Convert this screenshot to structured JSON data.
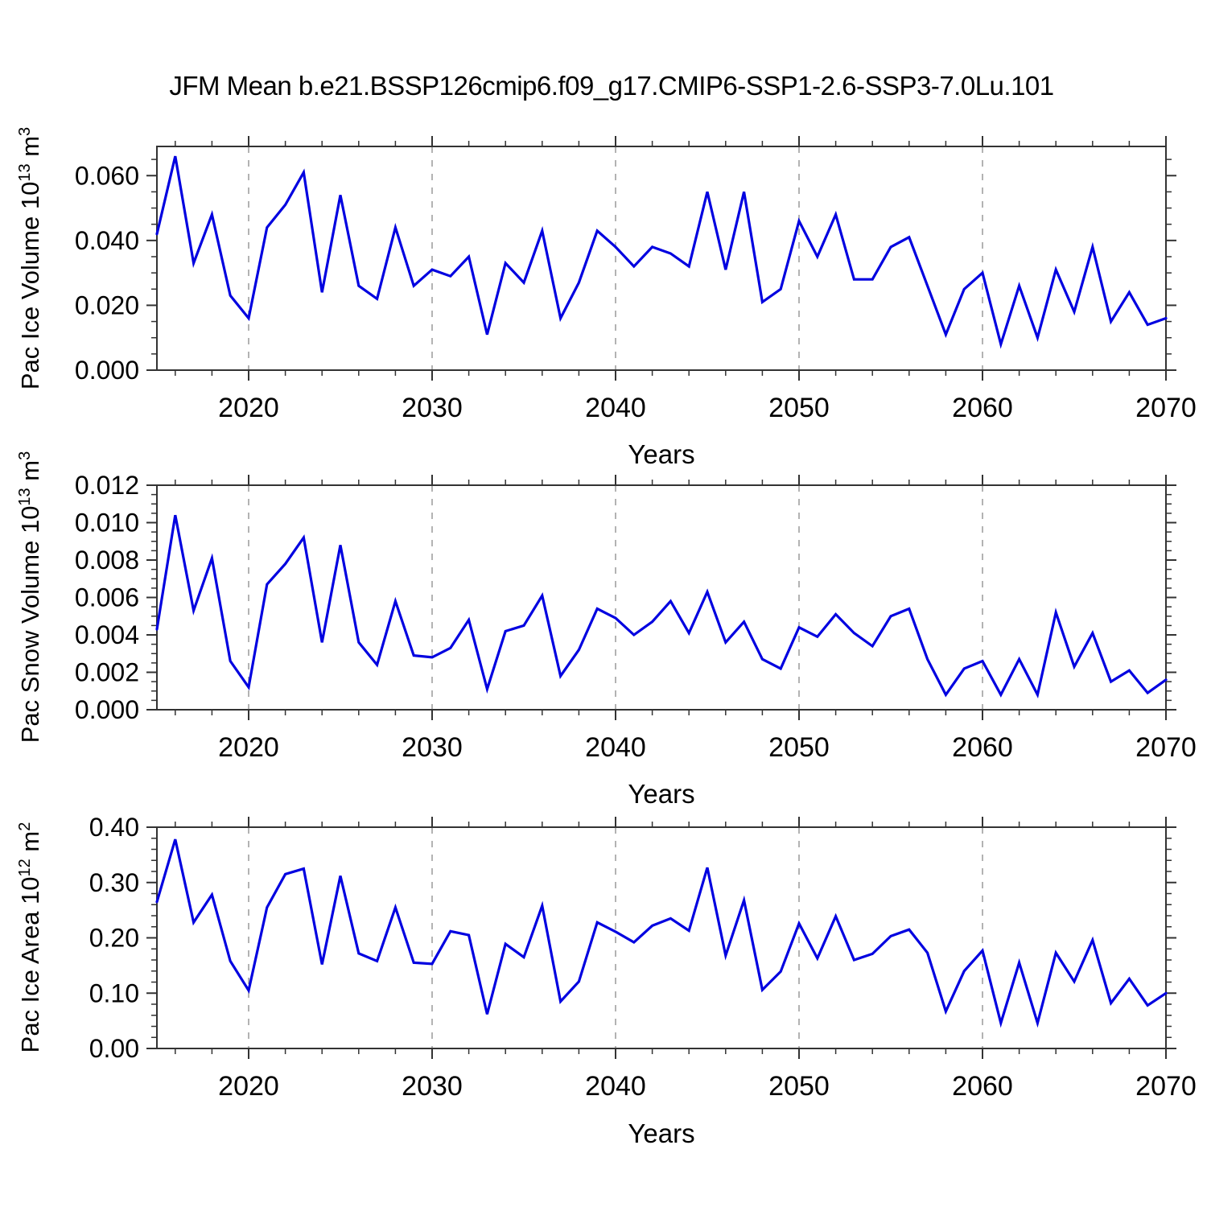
{
  "title": "JFM Mean b.e21.BSSP126cmip6.f09_g17.CMIP6-SSP1-2.6-SSP3-7.0Lu.101",
  "colors": {
    "line": "#0000e0",
    "grid": "#9a9a9a",
    "frame": "#333333",
    "text": "#000000"
  },
  "chart_data": [
    {
      "type": "line",
      "name": "pac-ice-volume",
      "ylabel": {
        "base": "Pac Ice Volume 10",
        "exp": "13",
        "unit": " m",
        "unit_exp": "3"
      },
      "xlabel": "Years",
      "xlim": [
        2015,
        2070
      ],
      "x_start": 2015,
      "x_step": 1,
      "ylim": [
        0,
        0.069
      ],
      "ytick_values": [
        0.0,
        0.02,
        0.04,
        0.06
      ],
      "ytick_labels": [
        "0.000",
        "0.020",
        "0.040",
        "0.060"
      ],
      "ytick_minor_step": 0.005,
      "xtick_values": [
        2020,
        2030,
        2040,
        2050,
        2060,
        2070
      ],
      "xtick_labels": [
        "2020",
        "2030",
        "2040",
        "2050",
        "2060",
        "2070"
      ],
      "xtick_minor_step": 2,
      "grid_x": [
        2020,
        2030,
        2040,
        2050,
        2060
      ],
      "values": [
        0.042,
        0.066,
        0.033,
        0.048,
        0.023,
        0.016,
        0.044,
        0.051,
        0.061,
        0.024,
        0.054,
        0.026,
        0.022,
        0.044,
        0.026,
        0.031,
        0.029,
        0.035,
        0.011,
        0.033,
        0.027,
        0.043,
        0.016,
        0.027,
        0.043,
        0.038,
        0.032,
        0.038,
        0.036,
        0.032,
        0.055,
        0.031,
        0.055,
        0.021,
        0.025,
        0.046,
        0.035,
        0.048,
        0.028,
        0.028,
        0.038,
        0.041,
        0.026,
        0.011,
        0.025,
        0.03,
        0.008,
        0.026,
        0.01,
        0.031,
        0.018,
        0.038,
        0.015,
        0.024,
        0.014,
        0.016
      ]
    },
    {
      "type": "line",
      "name": "pac-snow-volume",
      "ylabel": {
        "base": "Pac Snow Volume 10",
        "exp": "13",
        "unit": " m",
        "unit_exp": "3"
      },
      "xlabel": "Years",
      "xlim": [
        2015,
        2070
      ],
      "x_start": 2015,
      "x_step": 1,
      "ylim": [
        0,
        0.012
      ],
      "ytick_values": [
        0.0,
        0.002,
        0.004,
        0.006,
        0.008,
        0.01,
        0.012
      ],
      "ytick_labels": [
        "0.000",
        "0.002",
        "0.004",
        "0.006",
        "0.008",
        "0.010",
        "0.012"
      ],
      "ytick_minor_step": 0.0005,
      "xtick_values": [
        2020,
        2030,
        2040,
        2050,
        2060,
        2070
      ],
      "xtick_labels": [
        "2020",
        "2030",
        "2040",
        "2050",
        "2060",
        "2070"
      ],
      "xtick_minor_step": 2,
      "grid_x": [
        2020,
        2030,
        2040,
        2050,
        2060
      ],
      "values": [
        0.0043,
        0.0104,
        0.0053,
        0.0081,
        0.0026,
        0.0012,
        0.0067,
        0.0078,
        0.0092,
        0.0036,
        0.0088,
        0.0036,
        0.0024,
        0.0058,
        0.0029,
        0.0028,
        0.0033,
        0.0048,
        0.0011,
        0.0042,
        0.0045,
        0.0061,
        0.0018,
        0.0032,
        0.0054,
        0.0049,
        0.004,
        0.0047,
        0.0058,
        0.0041,
        0.0063,
        0.0036,
        0.0047,
        0.0027,
        0.0022,
        0.0044,
        0.0039,
        0.0051,
        0.0041,
        0.0034,
        0.005,
        0.0054,
        0.0027,
        0.0008,
        0.0022,
        0.0026,
        0.0008,
        0.0027,
        0.0008,
        0.0052,
        0.0023,
        0.0041,
        0.0015,
        0.0021,
        0.0009,
        0.0016
      ]
    },
    {
      "type": "line",
      "name": "pac-ice-area",
      "ylabel": {
        "base": "Pac Ice Area 10",
        "exp": "12",
        "unit": " m",
        "unit_exp": "2"
      },
      "xlabel": "Years",
      "xlim": [
        2015,
        2070
      ],
      "x_start": 2015,
      "x_step": 1,
      "ylim": [
        0,
        0.4
      ],
      "ytick_values": [
        0.0,
        0.1,
        0.2,
        0.3,
        0.4
      ],
      "ytick_labels": [
        "0.00",
        "0.10",
        "0.20",
        "0.30",
        "0.40"
      ],
      "ytick_minor_step": 0.02,
      "xtick_values": [
        2020,
        2030,
        2040,
        2050,
        2060,
        2070
      ],
      "xtick_labels": [
        "2020",
        "2030",
        "2040",
        "2050",
        "2060",
        "2070"
      ],
      "xtick_minor_step": 2,
      "grid_x": [
        2020,
        2030,
        2040,
        2050,
        2060
      ],
      "values": [
        0.265,
        0.378,
        0.228,
        0.278,
        0.158,
        0.105,
        0.255,
        0.315,
        0.325,
        0.152,
        0.312,
        0.172,
        0.158,
        0.255,
        0.155,
        0.153,
        0.212,
        0.205,
        0.062,
        0.189,
        0.165,
        0.258,
        0.085,
        0.121,
        0.228,
        0.211,
        0.192,
        0.222,
        0.235,
        0.213,
        0.327,
        0.168,
        0.268,
        0.106,
        0.139,
        0.226,
        0.163,
        0.239,
        0.16,
        0.171,
        0.203,
        0.215,
        0.173,
        0.067,
        0.14,
        0.177,
        0.046,
        0.155,
        0.046,
        0.173,
        0.121,
        0.196,
        0.082,
        0.126,
        0.078,
        0.1
      ]
    }
  ]
}
